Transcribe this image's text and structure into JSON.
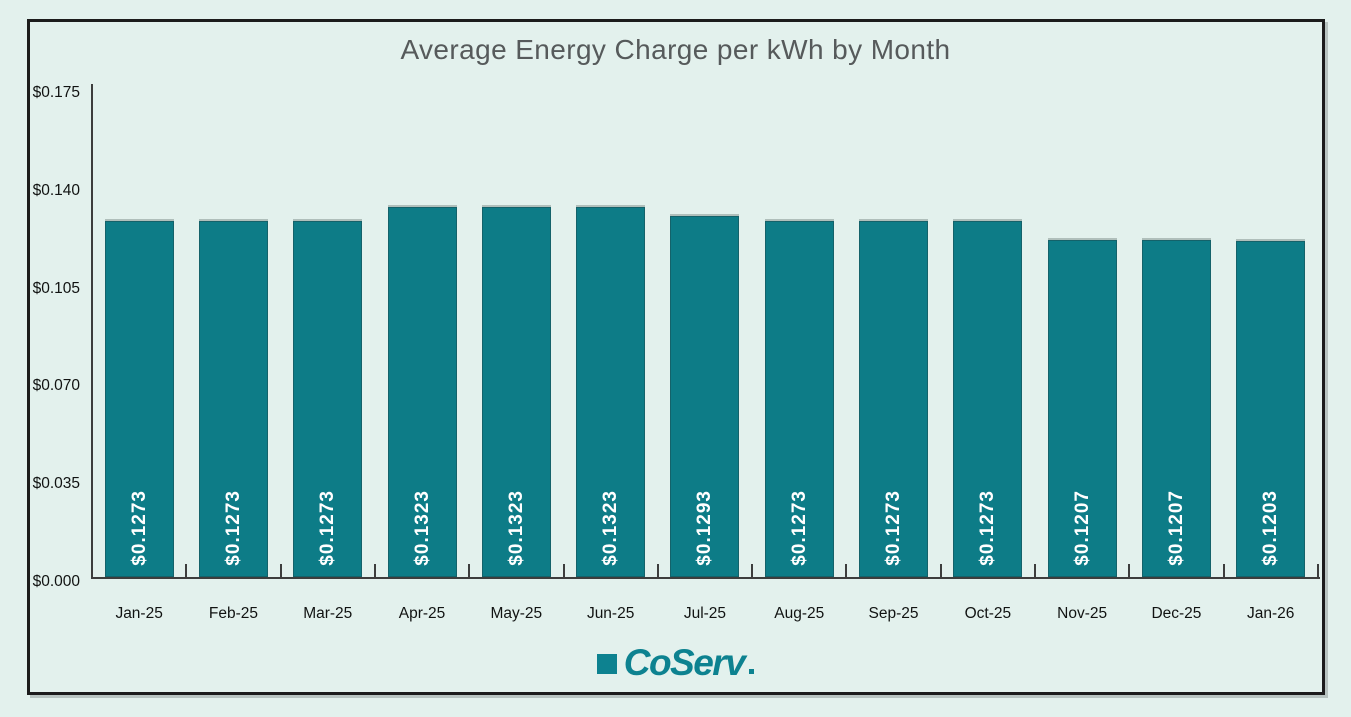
{
  "page": {
    "background_color": "#e3f1ed",
    "frame_border_color": "#1c1c1c"
  },
  "logo": {
    "text": "CoServ",
    "color": "#0d8290"
  },
  "chart_data": {
    "type": "bar",
    "title": "Average Energy Charge per kWh by Month",
    "xlabel": "",
    "ylabel": "",
    "categories": [
      "Jan-25",
      "Feb-25",
      "Mar-25",
      "Apr-25",
      "May-25",
      "Jun-25",
      "Jul-25",
      "Aug-25",
      "Sep-25",
      "Oct-25",
      "Nov-25",
      "Dec-25",
      "Jan-26"
    ],
    "values": [
      0.1273,
      0.1273,
      0.1273,
      0.1323,
      0.1323,
      0.1323,
      0.1293,
      0.1273,
      0.1273,
      0.1273,
      0.1207,
      0.1207,
      0.1203
    ],
    "bar_labels": [
      "$0.1273",
      "$0.1273",
      "$0.1273",
      "$0.1323",
      "$0.1323",
      "$0.1323",
      "$0.1293",
      "$0.1273",
      "$0.1273",
      "$0.1273",
      "$0.1207",
      "$0.1207",
      "$0.1203"
    ],
    "ylim": [
      0,
      0.175
    ],
    "yticks": [
      {
        "value": 0.0,
        "label": "$0.000"
      },
      {
        "value": 0.035,
        "label": "$0.035"
      },
      {
        "value": 0.07,
        "label": "$0.070"
      },
      {
        "value": 0.105,
        "label": "$0.105"
      },
      {
        "value": 0.14,
        "label": "$0.140"
      },
      {
        "value": 0.175,
        "label": "$0.175"
      }
    ],
    "bar_color": "#0d7c87",
    "bar_label_color": "#ffffff",
    "grid": false,
    "legend": false
  }
}
